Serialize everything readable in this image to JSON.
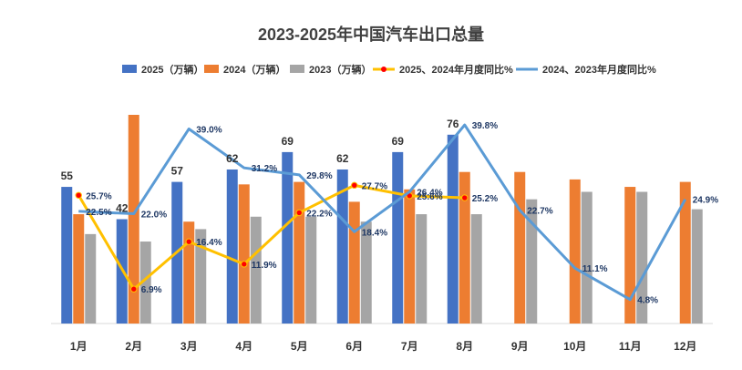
{
  "chart_data": {
    "type": "bar",
    "title": "2023-2025年中国汽车出口总量",
    "categories": [
      "1月",
      "2月",
      "3月",
      "4月",
      "5月",
      "6月",
      "7月",
      "8月",
      "9月",
      "10月",
      "11月",
      "12月"
    ],
    "series": [
      {
        "name": "2025（万辆）",
        "kind": "bar",
        "color": "#4472c4",
        "values": [
          55,
          42,
          57,
          62,
          69,
          62,
          69,
          76,
          null,
          null,
          null,
          null
        ],
        "labels": [
          "55",
          "42",
          "57",
          "62",
          "69",
          "62",
          "69",
          "76",
          "",
          "",
          "",
          ""
        ]
      },
      {
        "name": "2024（万辆）",
        "kind": "bar",
        "color": "#ed7d31",
        "values": [
          44,
          84,
          41,
          56,
          57,
          49,
          54,
          61,
          61,
          58,
          55,
          57
        ]
      },
      {
        "name": "2023（万辆）",
        "kind": "bar",
        "color": "#a5a5a5",
        "values": [
          36,
          33,
          38,
          43,
          43,
          41,
          44,
          44,
          50,
          53,
          53,
          46
        ]
      },
      {
        "name": "2025、2024年月度同比%",
        "kind": "line",
        "color": "#ffc000",
        "marker_color": "#ff0000",
        "values": [
          25.7,
          6.9,
          16.4,
          11.9,
          22.2,
          27.7,
          25.6,
          25.2,
          null,
          null,
          null,
          null
        ],
        "labels": [
          "25.7%",
          "6.9%",
          "16.4%",
          "11.9%",
          "22.2%",
          "27.7%",
          "25.6%",
          "25.2%",
          "",
          "",
          "",
          ""
        ]
      },
      {
        "name": "2024、2023年月度同比%",
        "kind": "line",
        "color": "#5b9bd5",
        "values": [
          22.5,
          22.0,
          39.0,
          31.2,
          29.8,
          18.4,
          26.4,
          39.8,
          22.7,
          11.1,
          4.8,
          24.9
        ],
        "labels": [
          "22.5%",
          "22.0%",
          "39.0%",
          "31.2%",
          "29.8%",
          "18.4%",
          "26.4%",
          "39.8%",
          "22.7%",
          "11.1%",
          "4.8%",
          "24.9%"
        ]
      }
    ],
    "bar_axis": {
      "min": 0,
      "max": 84
    },
    "line_axis": {
      "min": 0,
      "max": 40
    },
    "legend_position": "top",
    "grid": false
  }
}
